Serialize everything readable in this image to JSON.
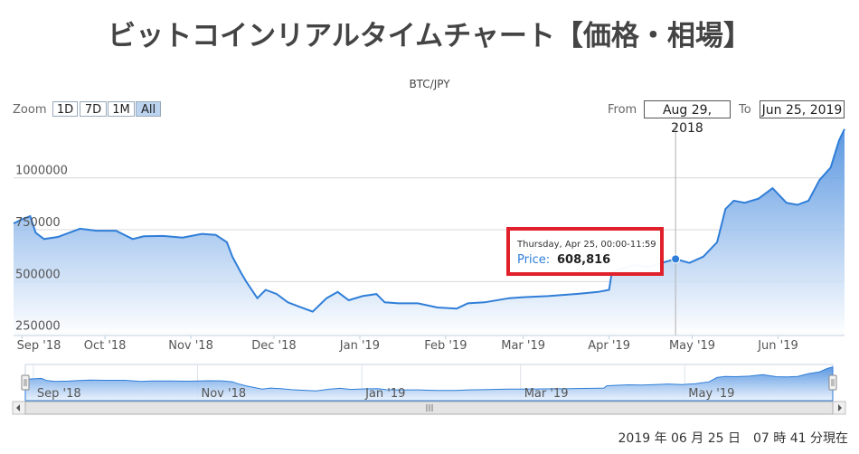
{
  "page": {
    "title": "ビットコインリアルタイムチャート【価格・相場】",
    "timestamp": "2019 年 06 月 25 日　07 時 41 分現在"
  },
  "controls": {
    "zoom_label": "Zoom",
    "zoom_buttons": [
      "1D",
      "7D",
      "1M",
      "All"
    ],
    "zoom_active": "All",
    "from_label": "From",
    "from_value": "Aug 29, 2018",
    "to_label": "To",
    "to_value": "Jun 25, 2019"
  },
  "tooltip": {
    "date": "Thursday, Apr 25, 00:00-11:59",
    "price_label": "Price:",
    "price_value": "608,816"
  },
  "colors": {
    "line": "#2f7ed8",
    "area_top": "#3f86dc",
    "area_bottom": "#ffffff",
    "highlight": "#e0202a"
  },
  "chart_data": {
    "type": "area",
    "subtitle": "BTC/JPY",
    "series": [
      {
        "name": "Price",
        "points": [
          [
            "2018-08-29",
            780000
          ],
          [
            "2018-09-01",
            800000
          ],
          [
            "2018-09-04",
            815000
          ],
          [
            "2018-09-06",
            735000
          ],
          [
            "2018-09-09",
            705000
          ],
          [
            "2018-09-14",
            715000
          ],
          [
            "2018-09-18",
            735000
          ],
          [
            "2018-09-22",
            755000
          ],
          [
            "2018-09-28",
            745000
          ],
          [
            "2018-10-05",
            745000
          ],
          [
            "2018-10-11",
            705000
          ],
          [
            "2018-10-15",
            718000
          ],
          [
            "2018-10-22",
            720000
          ],
          [
            "2018-10-29",
            712000
          ],
          [
            "2018-11-05",
            730000
          ],
          [
            "2018-11-10",
            725000
          ],
          [
            "2018-11-14",
            690000
          ],
          [
            "2018-11-16",
            620000
          ],
          [
            "2018-11-19",
            545000
          ],
          [
            "2018-11-21",
            500000
          ],
          [
            "2018-11-25",
            420000
          ],
          [
            "2018-11-28",
            460000
          ],
          [
            "2018-12-02",
            440000
          ],
          [
            "2018-12-06",
            400000
          ],
          [
            "2018-12-10",
            380000
          ],
          [
            "2018-12-15",
            355000
          ],
          [
            "2018-12-20",
            420000
          ],
          [
            "2018-12-24",
            450000
          ],
          [
            "2018-12-28",
            410000
          ],
          [
            "2019-01-02",
            430000
          ],
          [
            "2019-01-07",
            440000
          ],
          [
            "2019-01-10",
            400000
          ],
          [
            "2019-01-15",
            395000
          ],
          [
            "2019-01-22",
            395000
          ],
          [
            "2019-01-29",
            375000
          ],
          [
            "2019-02-05",
            370000
          ],
          [
            "2019-02-09",
            395000
          ],
          [
            "2019-02-15",
            400000
          ],
          [
            "2019-02-24",
            420000
          ],
          [
            "2019-03-01",
            425000
          ],
          [
            "2019-03-10",
            430000
          ],
          [
            "2019-03-20",
            440000
          ],
          [
            "2019-03-28",
            450000
          ],
          [
            "2019-04-01",
            460000
          ],
          [
            "2019-04-02",
            545000
          ],
          [
            "2019-04-05",
            560000
          ],
          [
            "2019-04-10",
            580000
          ],
          [
            "2019-04-15",
            570000
          ],
          [
            "2019-04-20",
            590000
          ],
          [
            "2019-04-25",
            608816
          ],
          [
            "2019-04-30",
            590000
          ],
          [
            "2019-05-05",
            620000
          ],
          [
            "2019-05-10",
            690000
          ],
          [
            "2019-05-13",
            850000
          ],
          [
            "2019-05-16",
            890000
          ],
          [
            "2019-05-20",
            880000
          ],
          [
            "2019-05-25",
            900000
          ],
          [
            "2019-05-30",
            950000
          ],
          [
            "2019-06-04",
            880000
          ],
          [
            "2019-06-08",
            870000
          ],
          [
            "2019-06-12",
            890000
          ],
          [
            "2019-06-16",
            990000
          ],
          [
            "2019-06-20",
            1050000
          ],
          [
            "2019-06-23",
            1180000
          ],
          [
            "2019-06-25",
            1235000
          ]
        ]
      }
    ],
    "y_ticks": [
      "1000000",
      "750000",
      "500000",
      "250000"
    ],
    "y_tick_values": [
      1000000,
      750000,
      500000,
      250000
    ],
    "ylim": [
      240000,
      1260000
    ],
    "x_ticks": [
      {
        "label": "Sep '18",
        "date": "2018-09-01"
      },
      {
        "label": "Oct '18",
        "date": "2018-10-01"
      },
      {
        "label": "Nov '18",
        "date": "2018-11-01"
      },
      {
        "label": "Dec '18",
        "date": "2018-12-01"
      },
      {
        "label": "Jan '19",
        "date": "2019-01-01"
      },
      {
        "label": "Feb '19",
        "date": "2019-02-01"
      },
      {
        "label": "Mar '19",
        "date": "2019-03-01"
      },
      {
        "label": "Apr '19",
        "date": "2019-04-01"
      },
      {
        "label": "May '19",
        "date": "2019-05-01"
      },
      {
        "label": "Jun '19",
        "date": "2019-06-01"
      }
    ],
    "xlim": [
      "2018-08-29",
      "2019-06-25"
    ],
    "navigator_ticks": [
      {
        "label": "Sep '18",
        "date": "2018-09-01"
      },
      {
        "label": "Nov '18",
        "date": "2018-11-01"
      },
      {
        "label": "Jan '19",
        "date": "2019-01-01"
      },
      {
        "label": "Mar '19",
        "date": "2019-03-01"
      },
      {
        "label": "May '19",
        "date": "2019-05-01"
      }
    ],
    "highlight_date": "2019-04-25",
    "grid": true,
    "legend": "none"
  }
}
